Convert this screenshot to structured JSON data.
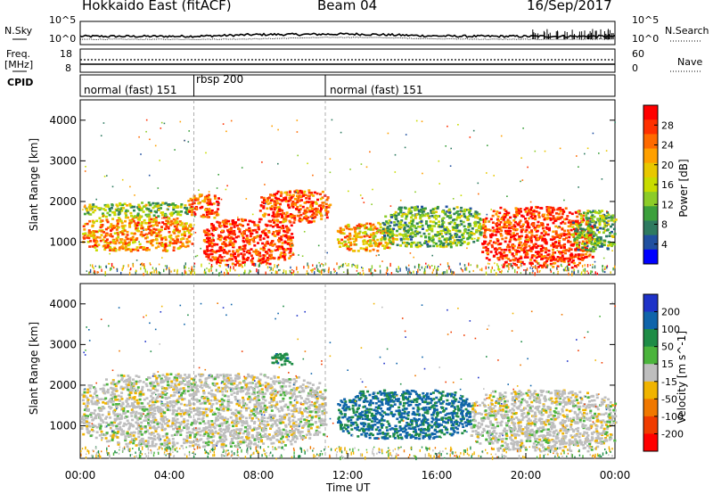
{
  "header": {
    "station": "Hokkaido East (fitACF)",
    "beam": "Beam 04",
    "date": "16/Sep/2017"
  },
  "noise_panel": {
    "left_label": "N.Sky",
    "right_label": "N.Search",
    "left_ticks": [
      "10^5",
      "10^0"
    ],
    "right_ticks": [
      "10^5",
      "10^0"
    ]
  },
  "freq_panel": {
    "left_label_1": "Freq.",
    "left_label_2": "[MHz]",
    "left_ticks": [
      "18",
      "8"
    ],
    "right_label": "Nave",
    "right_ticks": [
      "60",
      "0"
    ]
  },
  "cpid_panel": {
    "label": "CPID",
    "segments": [
      {
        "name": "normal (fast) 151",
        "start_hour": 0.0,
        "end_hour": 5.1
      },
      {
        "name": "rbsp 200",
        "start_hour": 5.1,
        "end_hour": 11.0
      },
      {
        "name": "normal (fast) 151",
        "start_hour": 11.0,
        "end_hour": 24.0
      }
    ]
  },
  "power_colorbar": {
    "label": "Power [dB]",
    "ticks": [
      "28",
      "24",
      "20",
      "16",
      "12",
      "8",
      "4"
    ],
    "colors": [
      "#ff0000",
      "#ff3000",
      "#ff6a00",
      "#ffa000",
      "#e8c800",
      "#c8dc00",
      "#8ccc28",
      "#3ca03c",
      "#2e7a60",
      "#2050a0",
      "#0000ff"
    ]
  },
  "velocity_colorbar": {
    "label": "Velocity [m s^-1]",
    "ticks": [
      "200",
      "100",
      "50",
      "15",
      "-15",
      "-50",
      "-100",
      "-200"
    ],
    "colors": [
      "#1e32c8",
      "#0f64aa",
      "#1e8c46",
      "#4bb43c",
      "#bebebe",
      "#f0b400",
      "#f07800",
      "#f03c00",
      "#ff0000"
    ]
  },
  "chart_data": {
    "type": "heatmap",
    "title": "Hokkaido East (fitACF) Beam 04 16/Sep/2017",
    "xlabel": "Time UT",
    "ylabel": "Slant Range [km]",
    "x_ticks": [
      "00:00",
      "04:00",
      "08:00",
      "12:00",
      "16:00",
      "20:00",
      "00:00"
    ],
    "y_ticks": [
      "1000",
      "2000",
      "3000",
      "4000"
    ],
    "xlim_hours": [
      0,
      24
    ],
    "ylim_km": [
      200,
      4500
    ],
    "power_echo_regions": [
      {
        "t0": 0.0,
        "t1": 5.0,
        "r0": 800,
        "r1": 1650,
        "power_db": 22
      },
      {
        "t0": 0.0,
        "t1": 5.0,
        "r0": 1650,
        "r1": 2000,
        "power_db": 14
      },
      {
        "t0": 4.8,
        "t1": 6.2,
        "r0": 1600,
        "r1": 2200,
        "power_db": 26
      },
      {
        "t0": 5.5,
        "t1": 9.5,
        "r0": 450,
        "r1": 1600,
        "power_db": 28
      },
      {
        "t0": 8.0,
        "t1": 11.2,
        "r0": 1500,
        "r1": 2300,
        "power_db": 26
      },
      {
        "t0": 11.5,
        "t1": 14.0,
        "r0": 800,
        "r1": 1500,
        "power_db": 20
      },
      {
        "t0": 13.5,
        "t1": 18.0,
        "r0": 900,
        "r1": 1900,
        "power_db": 12
      },
      {
        "t0": 18.0,
        "t1": 23.0,
        "r0": 400,
        "r1": 1900,
        "power_db": 28
      },
      {
        "t0": 22.0,
        "t1": 24.0,
        "r0": 800,
        "r1": 1800,
        "power_db": 12
      }
    ],
    "velocity_echo_regions": [
      {
        "t0": 0.0,
        "t1": 11.0,
        "r0": 500,
        "r1": 2300,
        "velocity_ms": 0
      },
      {
        "t0": 8.5,
        "t1": 9.5,
        "r0": 2500,
        "r1": 2800,
        "velocity_ms": 60
      },
      {
        "t0": 11.5,
        "t1": 17.5,
        "r0": 700,
        "r1": 1900,
        "velocity_ms": 80
      },
      {
        "t0": 17.5,
        "t1": 24.0,
        "r0": 400,
        "r1": 1900,
        "velocity_ms": 0
      }
    ]
  }
}
